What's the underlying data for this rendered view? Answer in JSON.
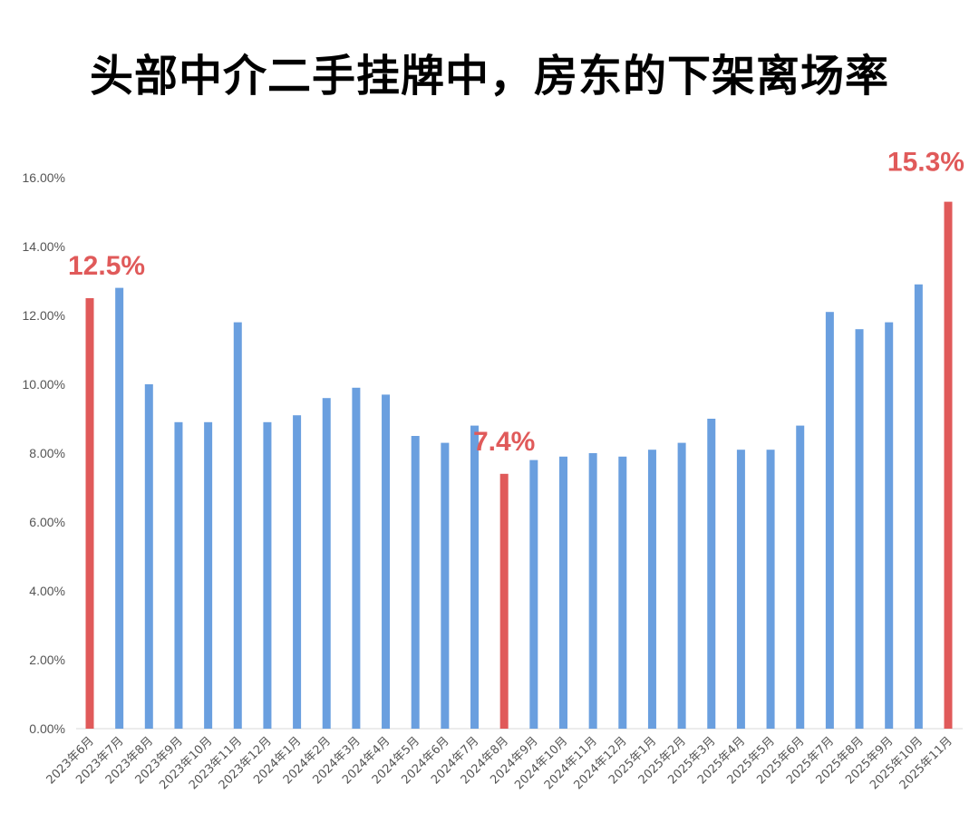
{
  "chart_data": {
    "type": "bar",
    "title": "头部中介二手挂牌中，房东的下架离场率",
    "categories": [
      "2023年6月",
      "2023年7月",
      "2023年8月",
      "2023年9月",
      "2023年10月",
      "2023年11月",
      "2023年12月",
      "2024年1月",
      "2024年2月",
      "2024年3月",
      "2024年4月",
      "2024年5月",
      "2024年6月",
      "2024年7月",
      "2024年8月",
      "2024年9月",
      "2024年10月",
      "2024年11月",
      "2024年12月",
      "2025年1月",
      "2025年2月",
      "2025年3月",
      "2025年4月",
      "2025年5月",
      "2025年6月",
      "2025年7月",
      "2025年8月",
      "2025年9月",
      "2025年10月",
      "2025年11月"
    ],
    "values": [
      12.5,
      12.8,
      10.0,
      8.9,
      8.9,
      11.8,
      8.9,
      9.1,
      9.6,
      9.9,
      9.7,
      8.5,
      8.3,
      8.8,
      7.4,
      7.8,
      7.9,
      8.0,
      7.9,
      8.1,
      8.3,
      9.0,
      8.1,
      8.1,
      8.8,
      12.1,
      11.6,
      11.8,
      12.9,
      15.3
    ],
    "highlight_indices": [
      0,
      14,
      29
    ],
    "annotations": [
      "12.5%",
      "7.4%",
      "15.3%"
    ],
    "ylim": [
      0,
      16
    ],
    "yticks": [
      "0.00%",
      "2.00%",
      "4.00%",
      "6.00%",
      "8.00%",
      "10.00%",
      "12.00%",
      "14.00%",
      "16.00%"
    ],
    "grid": false,
    "colors": {
      "bar": "#6a9fdf",
      "highlight": "#e05a5a"
    }
  }
}
